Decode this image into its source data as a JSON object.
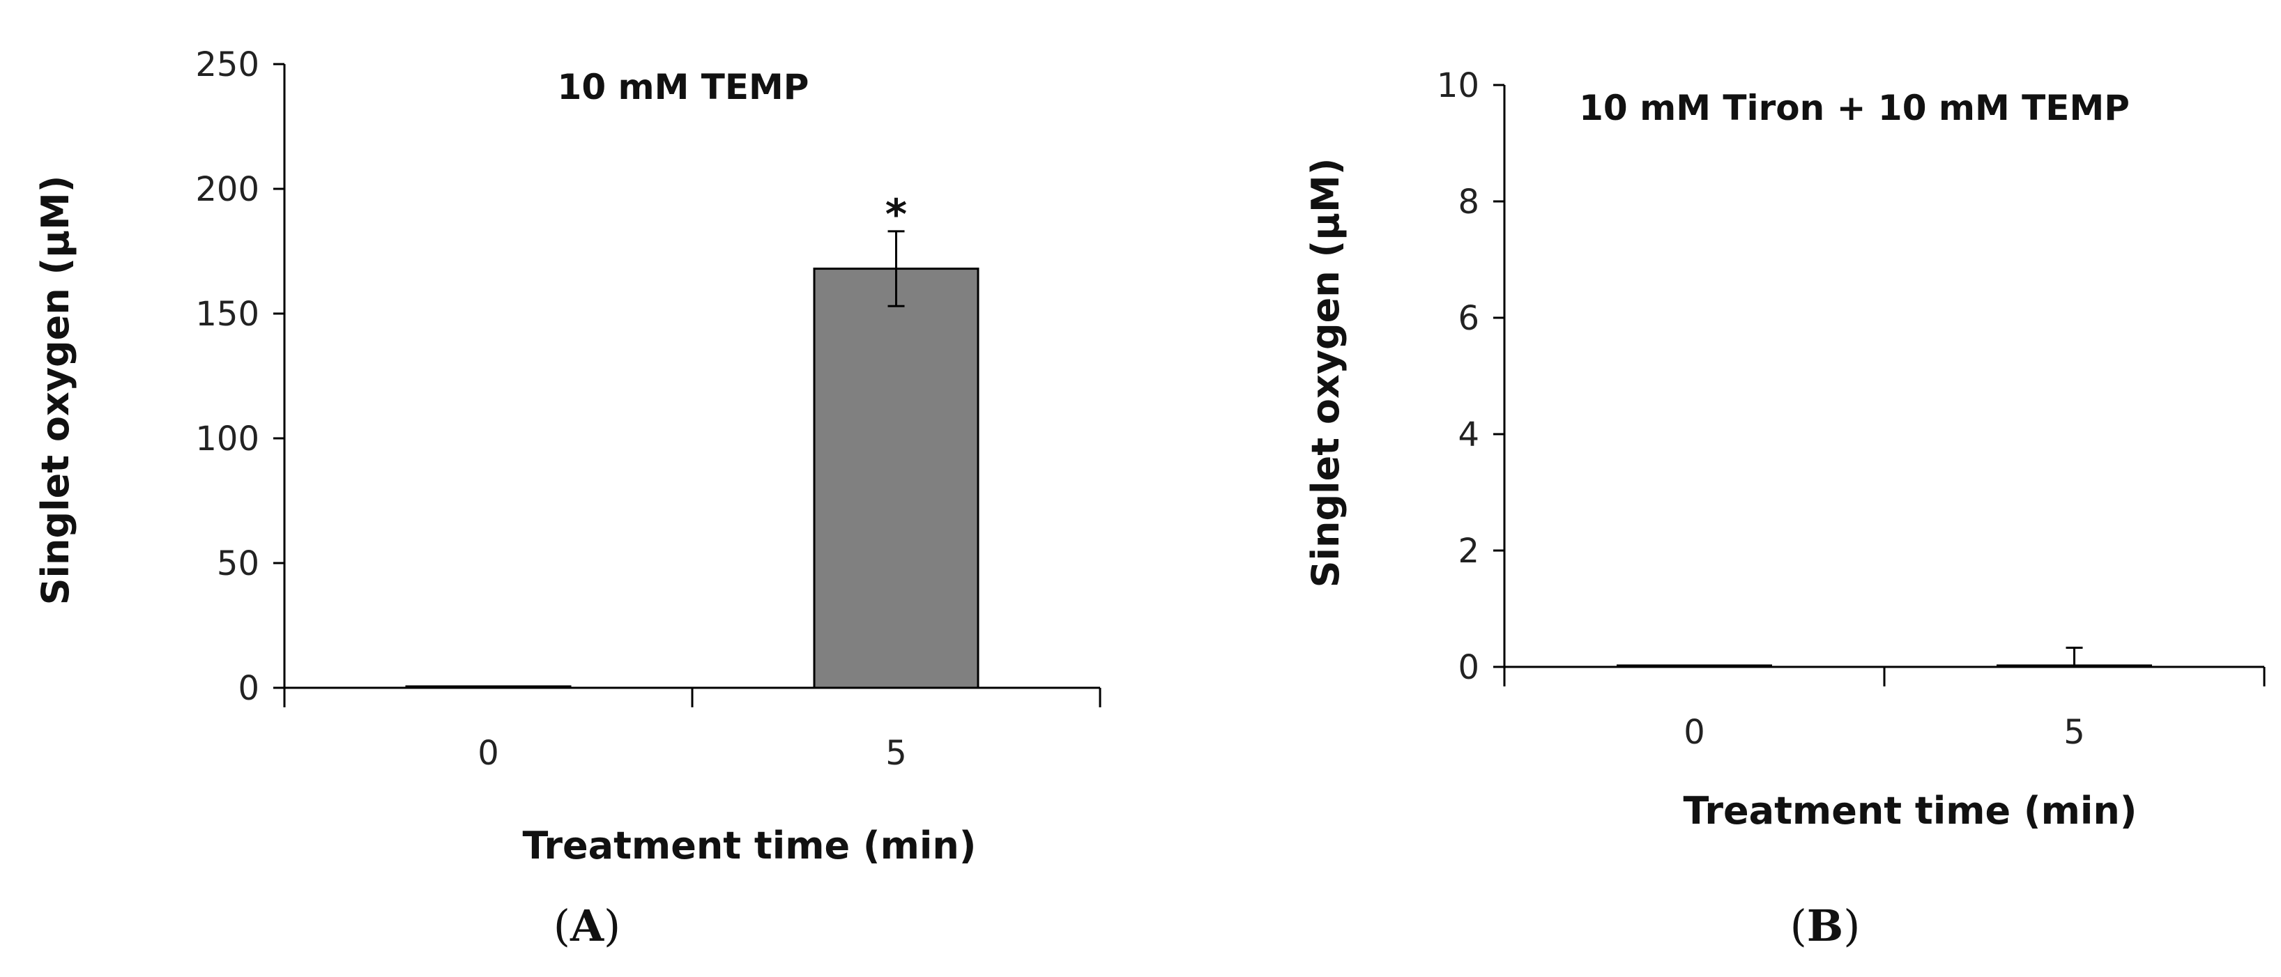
{
  "chart_data": [
    {
      "type": "bar",
      "panel": "A",
      "title": "10 mM TEMP",
      "xlabel": "Treatment time (min)",
      "ylabel": "Singlet oxygen (μM)",
      "categories": [
        "0",
        "5"
      ],
      "values": [
        0.5,
        168
      ],
      "errors": [
        0,
        15
      ],
      "ylim": [
        0,
        250
      ],
      "yticks": [
        0,
        50,
        100,
        150,
        200,
        250
      ],
      "annotations": [
        "",
        "*"
      ],
      "bar_color": "#808080"
    },
    {
      "type": "bar",
      "panel": "B",
      "title": "10 mM Tiron + 10 mM TEMP",
      "xlabel": "Treatment time (min)",
      "ylabel": "Singlet oxygen (μM)",
      "categories": [
        "0",
        "5"
      ],
      "values": [
        0.02,
        0
      ],
      "errors": [
        0,
        0.33
      ],
      "ylim": [
        0,
        10
      ],
      "yticks": [
        0,
        2,
        4,
        6,
        8,
        10
      ],
      "annotations": [
        "",
        ""
      ],
      "bar_color": "#808080"
    }
  ],
  "panel_labels": [
    "A",
    "B"
  ]
}
